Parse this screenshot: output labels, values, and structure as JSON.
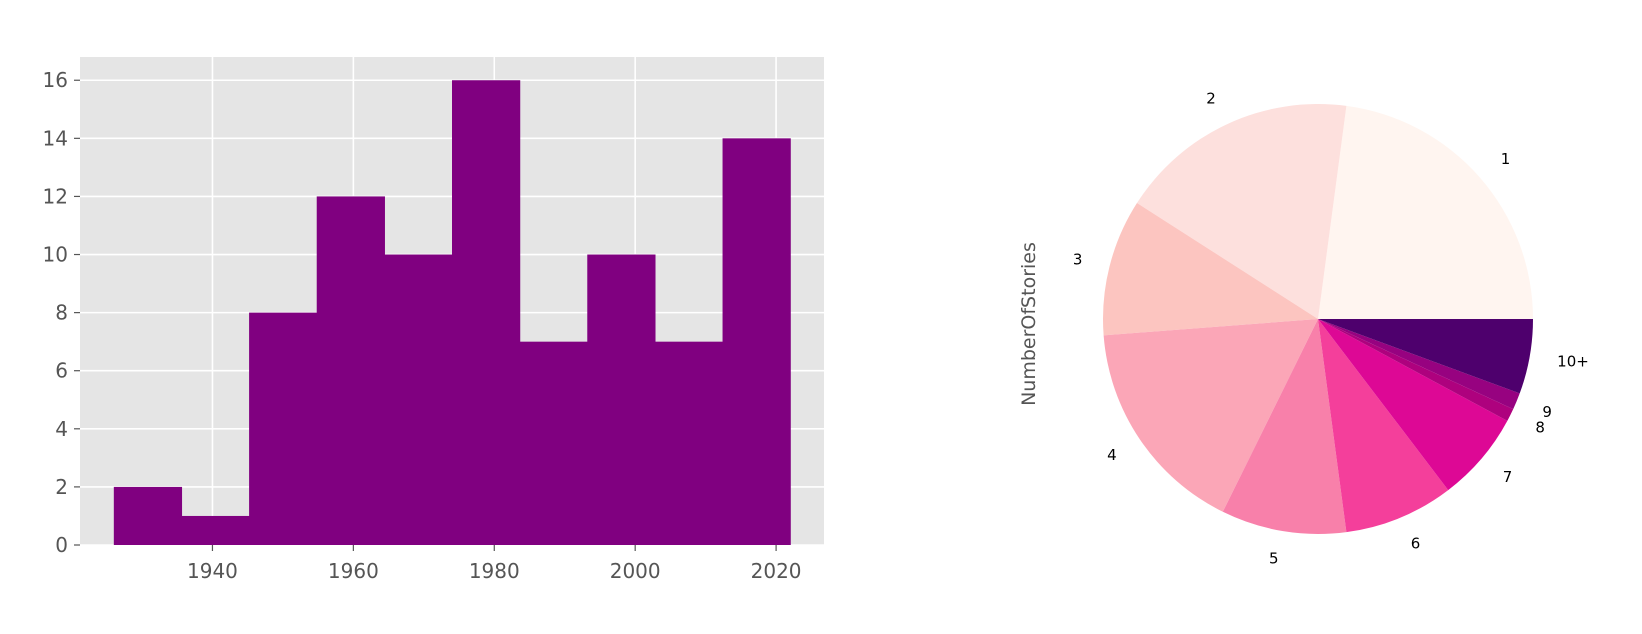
{
  "chart_data": [
    {
      "type": "bar",
      "subtype": "histogram",
      "style": "ggplot",
      "bins": [
        {
          "start": 1926.0,
          "end": 1935.6,
          "count": 2
        },
        {
          "start": 1935.6,
          "end": 1945.2,
          "count": 1
        },
        {
          "start": 1945.2,
          "end": 1954.8,
          "count": 8
        },
        {
          "start": 1954.8,
          "end": 1964.4,
          "count": 12
        },
        {
          "start": 1964.4,
          "end": 1974.0,
          "count": 10
        },
        {
          "start": 1974.0,
          "end": 1983.6,
          "count": 16
        },
        {
          "start": 1983.6,
          "end": 1993.2,
          "count": 7
        },
        {
          "start": 1993.2,
          "end": 2002.8,
          "count": 10
        },
        {
          "start": 2002.8,
          "end": 2012.4,
          "count": 7
        },
        {
          "start": 2012.4,
          "end": 2022.0,
          "count": 14
        }
      ],
      "xlim": [
        1921.2,
        2026.8
      ],
      "ylim": [
        0,
        16.8
      ],
      "xticks": [
        1940,
        1960,
        1980,
        2000,
        2020
      ],
      "yticks": [
        0,
        2,
        4,
        6,
        8,
        10,
        12,
        14,
        16
      ],
      "bar_color": "#800080",
      "background_color": "#e5e5e5",
      "grid": true,
      "title": "",
      "xlabel": "",
      "ylabel": ""
    },
    {
      "type": "pie",
      "ylabel": "NumberOfStories",
      "labels": [
        "1",
        "2",
        "3",
        "4",
        "5",
        "6",
        "7",
        "8",
        "9",
        "10+"
      ],
      "values": [
        23.6,
        18.6,
        10.6,
        17.0,
        9.7,
        8.5,
        7.0,
        1.0,
        1.3,
        5.8
      ],
      "colors": [
        "#fff5f0",
        "#fde0dd",
        "#fcc5c0",
        "#fba6b7",
        "#f880aa",
        "#f43f9b",
        "#dd0895",
        "#ae017e",
        "#970280",
        "#4e006d"
      ],
      "start_angle": 0,
      "direction": "counterclockwise"
    }
  ]
}
